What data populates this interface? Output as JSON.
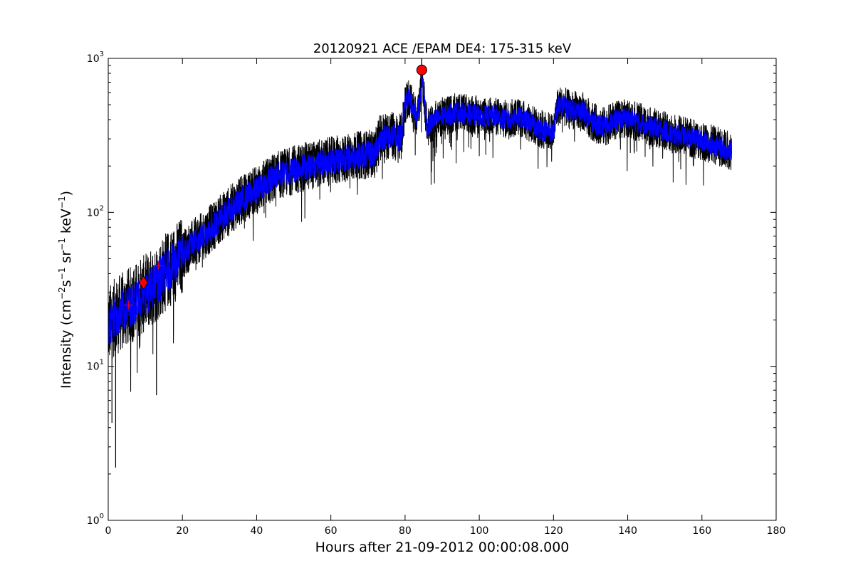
{
  "chart_data": {
    "type": "line",
    "title": "20120921 ACE /EPAM DE4: 175-315 keV",
    "xlabel": "Hours after 21-09-2012 00:00:08.000",
    "ylabel_base": "Intensity (cm",
    "ylabel_sup1": "−2",
    "ylabel_mid1": "s",
    "ylabel_sup2": "−1",
    "ylabel_mid2": " sr",
    "ylabel_sup3": "−1",
    "ylabel_mid3": " keV",
    "ylabel_sup4": "−1",
    "ylabel_end": ")",
    "xlim": [
      0,
      180
    ],
    "ylim": [
      1,
      1000
    ],
    "yscale": "log",
    "grid": false,
    "x_ticks": [
      "0",
      "20",
      "40",
      "60",
      "80",
      "100",
      "120",
      "140",
      "160",
      "180"
    ],
    "y_ticks": [
      {
        "base": "10",
        "exp": "0"
      },
      {
        "base": "10",
        "exp": "1"
      },
      {
        "base": "10",
        "exp": "2"
      },
      {
        "base": "10",
        "exp": "3"
      }
    ],
    "series": [
      {
        "color": "#000000",
        "style": "raw noisy data",
        "x": [
          0,
          1,
          2,
          3,
          4,
          5,
          6,
          8,
          10,
          12,
          14,
          16,
          18,
          20,
          22,
          24,
          26,
          28,
          30,
          32,
          34,
          36,
          38,
          40,
          42,
          44,
          46,
          48,
          50,
          52,
          54,
          56,
          58,
          60,
          62,
          64,
          66,
          68,
          70,
          72,
          73,
          74,
          76,
          78,
          79,
          80,
          81,
          82,
          83,
          84,
          84.5,
          85,
          86,
          87,
          88,
          90,
          92,
          94,
          96,
          98,
          100,
          102,
          104,
          106,
          108,
          110,
          112,
          114,
          116,
          118,
          120,
          121,
          122,
          124,
          126,
          128,
          130,
          132,
          134,
          136,
          138,
          140,
          142,
          144,
          146,
          148,
          150,
          152,
          154,
          156,
          158,
          160,
          162,
          164,
          166,
          168
        ],
        "y": [
          18,
          20,
          21,
          22,
          23,
          24,
          25,
          27,
          30,
          33,
          37,
          42,
          47,
          53,
          60,
          66,
          72,
          80,
          90,
          100,
          110,
          120,
          130,
          140,
          152,
          165,
          175,
          182,
          188,
          195,
          200,
          205,
          210,
          215,
          220,
          225,
          230,
          235,
          238,
          240,
          300,
          310,
          320,
          300,
          305,
          500,
          560,
          480,
          420,
          520,
          820,
          600,
          350,
          380,
          400,
          420,
          430,
          450,
          440,
          430,
          430,
          420,
          420,
          410,
          400,
          420,
          400,
          380,
          350,
          340,
          330,
          480,
          500,
          470,
          460,
          450,
          400,
          370,
          360,
          390,
          400,
          410,
          390,
          380,
          360,
          350,
          340,
          320,
          320,
          310,
          300,
          290,
          280,
          270,
          260,
          250
        ]
      },
      {
        "color": "#0000ff",
        "style": "smoothed data",
        "x": [
          0,
          1,
          2,
          3,
          4,
          5,
          6,
          8,
          10,
          12,
          14,
          16,
          18,
          20,
          22,
          24,
          26,
          28,
          30,
          32,
          34,
          36,
          38,
          40,
          42,
          44,
          46,
          48,
          50,
          52,
          54,
          56,
          58,
          60,
          62,
          64,
          66,
          68,
          70,
          72,
          73,
          74,
          76,
          78,
          79,
          80,
          81,
          82,
          83,
          84,
          84.5,
          85,
          86,
          87,
          88,
          90,
          92,
          94,
          96,
          98,
          100,
          102,
          104,
          106,
          108,
          110,
          112,
          114,
          116,
          118,
          120,
          121,
          122,
          124,
          126,
          128,
          130,
          132,
          134,
          136,
          138,
          140,
          142,
          144,
          146,
          148,
          150,
          152,
          154,
          156,
          158,
          160,
          162,
          164,
          166,
          168
        ],
        "y": [
          18,
          20,
          21,
          22,
          23,
          24,
          25,
          27,
          30,
          33,
          37,
          42,
          47,
          53,
          60,
          66,
          72,
          80,
          90,
          100,
          110,
          120,
          130,
          140,
          152,
          165,
          175,
          182,
          188,
          195,
          200,
          205,
          210,
          215,
          220,
          225,
          230,
          235,
          238,
          240,
          300,
          310,
          320,
          300,
          305,
          500,
          560,
          480,
          420,
          520,
          820,
          600,
          350,
          380,
          400,
          420,
          430,
          450,
          440,
          430,
          430,
          420,
          420,
          410,
          400,
          420,
          400,
          380,
          350,
          340,
          330,
          480,
          500,
          470,
          460,
          450,
          400,
          370,
          360,
          390,
          400,
          410,
          390,
          380,
          360,
          350,
          340,
          320,
          320,
          310,
          300,
          290,
          280,
          270,
          260,
          250
        ]
      }
    ],
    "markers": [
      {
        "shape": "plus",
        "color": "#ff0000",
        "x": 5.5,
        "y": 25
      },
      {
        "shape": "diamond",
        "color": "#ff0000",
        "x": 9.5,
        "y": 35
      },
      {
        "shape": "plus",
        "color": "#ff0000",
        "x": 13.5,
        "y": 45
      },
      {
        "shape": "circle",
        "color": "#ff0000",
        "x": 84.5,
        "y": 840
      }
    ]
  }
}
